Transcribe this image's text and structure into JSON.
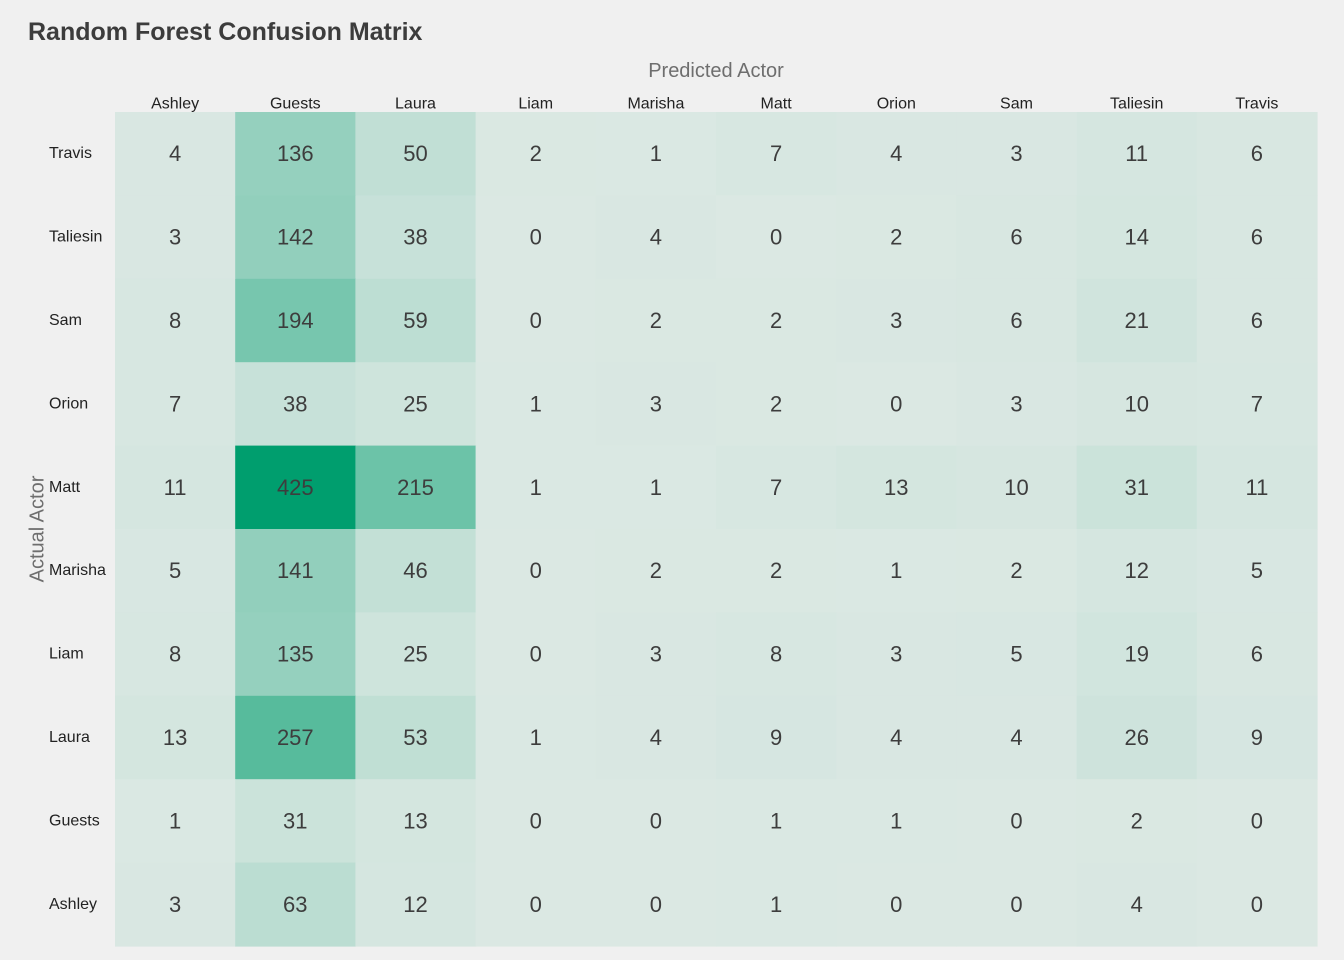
{
  "chart_data": {
    "type": "heatmap",
    "title": "Random Forest Confusion Matrix",
    "xlabel": "Predicted Actor",
    "ylabel": "Actual Actor",
    "x_categories": [
      "Ashley",
      "Guests",
      "Laura",
      "Liam",
      "Marisha",
      "Matt",
      "Orion",
      "Sam",
      "Taliesin",
      "Travis"
    ],
    "y_categories": [
      "Travis",
      "Taliesin",
      "Sam",
      "Orion",
      "Matt",
      "Marisha",
      "Liam",
      "Laura",
      "Guests",
      "Ashley"
    ],
    "values": [
      [
        4,
        136,
        50,
        2,
        1,
        7,
        4,
        3,
        11,
        6
      ],
      [
        3,
        142,
        38,
        0,
        4,
        0,
        2,
        6,
        14,
        6
      ],
      [
        8,
        194,
        59,
        0,
        2,
        2,
        3,
        6,
        21,
        6
      ],
      [
        7,
        38,
        25,
        1,
        3,
        2,
        0,
        3,
        10,
        7
      ],
      [
        11,
        425,
        215,
        1,
        1,
        7,
        13,
        10,
        31,
        11
      ],
      [
        5,
        141,
        46,
        0,
        2,
        2,
        1,
        2,
        12,
        5
      ],
      [
        8,
        135,
        25,
        0,
        3,
        8,
        3,
        5,
        19,
        6
      ],
      [
        13,
        257,
        53,
        1,
        4,
        9,
        4,
        4,
        26,
        9
      ],
      [
        1,
        31,
        13,
        0,
        0,
        1,
        1,
        0,
        2,
        0
      ],
      [
        3,
        63,
        12,
        0,
        0,
        1,
        0,
        0,
        4,
        0
      ]
    ],
    "color_low": "#dbe8e3",
    "color_high": "#009e6e",
    "value_range": [
      0,
      425
    ],
    "grid": false,
    "legend": "none"
  }
}
